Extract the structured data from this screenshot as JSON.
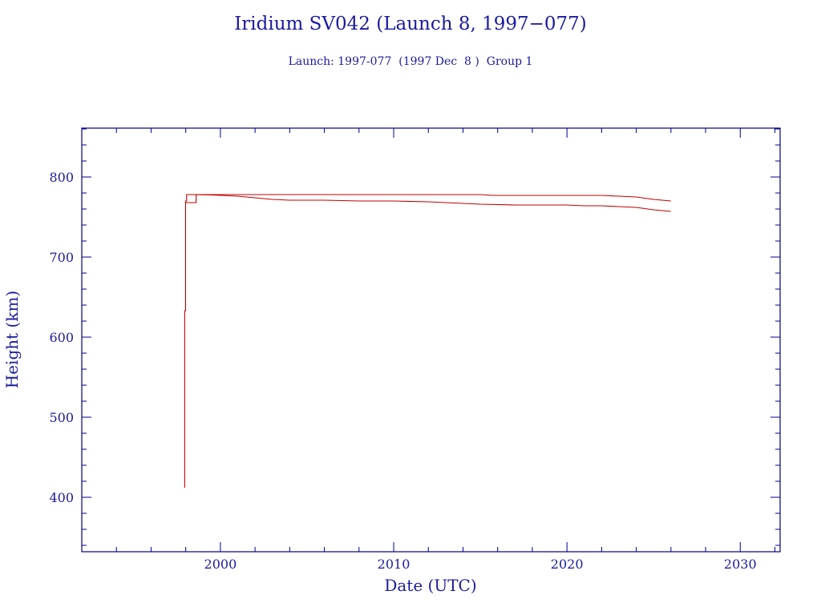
{
  "chart_data": {
    "type": "line",
    "title": "Iridium SV042 (Launch 8, 1997−077)",
    "subtitle": "Launch: 1997-077  (1997 Dec  8 )  Group 1",
    "xlabel": "Date (UTC)",
    "ylabel": "Height (km)",
    "xlim": [
      1992,
      2032.3
    ],
    "ylim": [
      332,
      861
    ],
    "xticks": [
      2000,
      2010,
      2020,
      2030
    ],
    "yticks": [
      400,
      500,
      600,
      700,
      800
    ],
    "grid": false,
    "colors": {
      "axes": "#00008b",
      "text": "#1a1aa0",
      "line": "#c00000"
    },
    "series": [
      {
        "values": [
          [
            1997.94,
            412
          ],
          [
            1997.94,
            633
          ],
          [
            1997.99,
            633
          ],
          [
            1997.99,
            770
          ],
          [
            1998.05,
            770
          ],
          [
            1998.05,
            778
          ],
          [
            1998.6,
            778
          ],
          [
            2000,
            778
          ],
          [
            2005,
            778
          ],
          [
            2010,
            778
          ],
          [
            2015,
            778
          ],
          [
            2015.7,
            777
          ],
          [
            2020,
            777
          ],
          [
            2022,
            777
          ],
          [
            2023,
            776
          ],
          [
            2024,
            775
          ],
          [
            2025,
            772
          ],
          [
            2026,
            770
          ]
        ]
      },
      {
        "values": [
          [
            1998.0,
            768
          ],
          [
            1998.6,
            768
          ],
          [
            1998.6,
            778
          ],
          [
            1999.5,
            777.5
          ],
          [
            2000,
            777
          ],
          [
            2001,
            776
          ],
          [
            2002,
            774
          ],
          [
            2003,
            772
          ],
          [
            2004,
            771
          ],
          [
            2006,
            771
          ],
          [
            2008,
            770
          ],
          [
            2010,
            770
          ],
          [
            2012,
            769
          ],
          [
            2013,
            768
          ],
          [
            2014,
            767
          ],
          [
            2015,
            766
          ],
          [
            2017,
            765
          ],
          [
            2020,
            765
          ],
          [
            2021,
            764
          ],
          [
            2022,
            764
          ],
          [
            2023,
            763
          ],
          [
            2024,
            762
          ],
          [
            2025,
            759
          ],
          [
            2026,
            757
          ]
        ]
      }
    ]
  }
}
